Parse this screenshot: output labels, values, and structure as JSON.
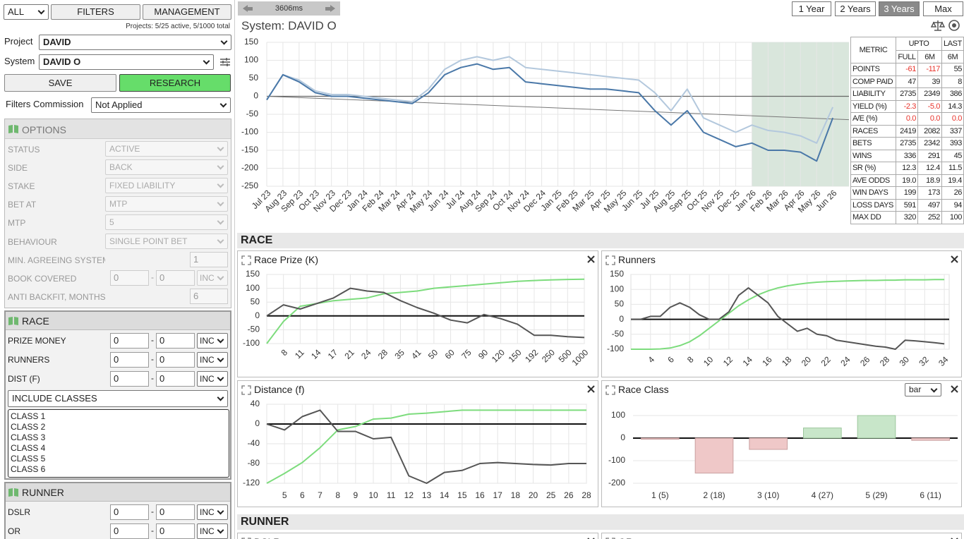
{
  "sidebar": {
    "scope": "ALL",
    "tabs": [
      "FILTERS",
      "MANAGEMENT"
    ],
    "projects_info": "Projects: 5/25 active, 5/1000 total",
    "project": {
      "label": "Project",
      "value": "DAVID"
    },
    "system": {
      "label": "System",
      "value": "DAVID O"
    },
    "buttons": [
      "SAVE",
      "RESEARCH"
    ],
    "commission": {
      "label": "Filters Commission",
      "value": "Not Applied"
    },
    "range_separator": "-",
    "options": {
      "title": "OPTIONS",
      "rows": [
        {
          "label": "STATUS",
          "select": "ACTIVE"
        },
        {
          "label": "SIDE",
          "select": "BACK"
        },
        {
          "label": "STAKE",
          "select": "FIXED LIABILITY"
        },
        {
          "label": "BET AT",
          "select": "MTP"
        },
        {
          "label": "MTP",
          "select": "5"
        },
        {
          "label": "BEHAVIOUR",
          "select": "SINGLE POINT BET"
        },
        {
          "label": "MIN. AGREEING SYSTEMS",
          "input": "1"
        },
        {
          "label": "BOOK COVERED",
          "from": "0",
          "to": "0",
          "mode": "INC"
        },
        {
          "label": "ANTI BACKFIT, MONTHS",
          "input": "6"
        }
      ]
    },
    "race": {
      "title": "RACE",
      "rows": [
        {
          "label": "PRIZE MONEY",
          "from": "0",
          "to": "0",
          "mode": "INC"
        },
        {
          "label": "RUNNERS",
          "from": "0",
          "to": "0",
          "mode": "INC"
        },
        {
          "label": "DIST (F)",
          "from": "0",
          "to": "0",
          "mode": "INC"
        }
      ],
      "classes_select": "INCLUDE CLASSES",
      "classes": [
        "CLASS 1",
        "CLASS 2",
        "CLASS 3",
        "CLASS 4",
        "CLASS 5",
        "CLASS 6"
      ]
    },
    "runner": {
      "title": "RUNNER",
      "rows": [
        {
          "label": "DSLR",
          "from": "0",
          "to": "0",
          "mode": "INC"
        },
        {
          "label": "OR",
          "from": "0",
          "to": "0",
          "mode": "INC"
        }
      ]
    }
  },
  "toolbar": {
    "timer": "3606ms",
    "periods": [
      "1 Year",
      "2 Years",
      "3 Years",
      "Max"
    ],
    "active_period": "3 Years"
  },
  "system_title": "System: DAVID O",
  "metrics": {
    "header": "METRIC",
    "groups": [
      "UPTO",
      "LAST"
    ],
    "columns": [
      "FULL",
      "6M",
      "6M"
    ],
    "alert_color": "#e8332b",
    "rows": [
      {
        "metric": "POINTS",
        "values": [
          "-61",
          "-117",
          "55"
        ],
        "red": [
          true,
          true,
          false
        ]
      },
      {
        "metric": "COMP PAID",
        "values": [
          "47",
          "39",
          "8"
        ],
        "red": [
          false,
          false,
          false
        ]
      },
      {
        "metric": "LIABILITY",
        "values": [
          "2735",
          "2349",
          "386"
        ],
        "red": [
          false,
          false,
          false
        ]
      },
      {
        "metric": "YIELD (%)",
        "values": [
          "-2.3",
          "-5.0",
          "14.3"
        ],
        "red": [
          true,
          true,
          false
        ]
      },
      {
        "metric": "A/E (%)",
        "values": [
          "0.0",
          "0.0",
          "0.0"
        ],
        "red": [
          true,
          true,
          true
        ]
      },
      {
        "metric": "RACES",
        "values": [
          "2419",
          "2082",
          "337"
        ],
        "red": [
          false,
          false,
          false
        ]
      },
      {
        "metric": "BETS",
        "values": [
          "2735",
          "2342",
          "393"
        ],
        "red": [
          false,
          false,
          false
        ]
      },
      {
        "metric": "WINS",
        "values": [
          "336",
          "291",
          "45"
        ],
        "red": [
          false,
          false,
          false
        ]
      },
      {
        "metric": "SR (%)",
        "values": [
          "12.3",
          "12.4",
          "11.5"
        ],
        "red": [
          false,
          false,
          false
        ]
      },
      {
        "metric": "AVE ODDS",
        "values": [
          "19.0",
          "18.9",
          "19.4"
        ],
        "red": [
          false,
          false,
          false
        ]
      },
      {
        "metric": "WIN DAYS",
        "values": [
          "199",
          "173",
          "26"
        ],
        "red": [
          false,
          false,
          false
        ]
      },
      {
        "metric": "LOSS DAYS",
        "values": [
          "591",
          "497",
          "94"
        ],
        "red": [
          false,
          false,
          false
        ]
      },
      {
        "metric": "MAX DD",
        "values": [
          "320",
          "252",
          "100"
        ],
        "red": [
          false,
          false,
          false
        ]
      }
    ]
  },
  "sections": [
    "RACE",
    "RUNNER"
  ],
  "runner_panels": [
    "DSLR",
    "OR"
  ],
  "chart_data": [
    {
      "type": "line",
      "categories": [
        "Jul 23",
        "Aug 23",
        "Sep 23",
        "Oct 23",
        "Nov 23",
        "Dec 23",
        "Jan 24",
        "Feb 24",
        "Mar 24",
        "Apr 24",
        "May 24",
        "Jun 24",
        "Jul 24",
        "Aug 24",
        "Sep 24",
        "Oct 24",
        "Nov 24",
        "Dec 24",
        "Jan 25",
        "Feb 25",
        "Mar 25",
        "Apr 25",
        "May 25",
        "Jun 25",
        "Jul 25",
        "Aug 25",
        "Sep 25",
        "Oct 25",
        "Nov 25",
        "Dec 25",
        "Jan 26",
        "Feb 26",
        "Mar 26",
        "Apr 26",
        "May 26",
        "Jun 26"
      ],
      "ylim": [
        -250,
        150
      ],
      "yticks": [
        -250,
        -200,
        -150,
        -100,
        -50,
        0,
        50,
        100,
        150
      ],
      "grid": true,
      "zero_line": true,
      "series": [
        {
          "color": "#b3c8dd",
          "values": [
            -10,
            60,
            45,
            15,
            5,
            5,
            0,
            -5,
            -10,
            -15,
            20,
            75,
            100,
            110,
            100,
            110,
            80,
            75,
            70,
            65,
            60,
            55,
            50,
            45,
            10,
            -40,
            20,
            -60,
            -80,
            -100,
            -80,
            -95,
            -100,
            -110,
            -130,
            -30
          ]
        },
        {
          "color": "#4a78a8",
          "values": [
            -10,
            60,
            40,
            10,
            0,
            0,
            -5,
            -10,
            -15,
            -20,
            10,
            60,
            80,
            90,
            75,
            80,
            40,
            35,
            30,
            25,
            20,
            20,
            15,
            10,
            -40,
            -80,
            -40,
            -100,
            -120,
            -140,
            -130,
            -150,
            -150,
            -155,
            -180,
            -60
          ]
        }
      ],
      "trend": {
        "color": "#777777",
        "values": [
          0,
          -65
        ]
      },
      "shade": {
        "from": "Jan 26",
        "color": "#d9e6dc"
      }
    },
    {
      "type": "line",
      "title": "Race Prize (K)",
      "categories": [
        null,
        "8",
        "11",
        "14",
        "17",
        "21",
        "24",
        "28",
        "35",
        "41",
        "50",
        "60",
        "75",
        "90",
        "120",
        "150",
        "192",
        "250",
        "500",
        "1000"
      ],
      "ylim": [
        -100,
        150
      ],
      "yticks": [
        -100,
        -50,
        0,
        50,
        100,
        150
      ],
      "grid": true,
      "zero_line": true,
      "series": [
        {
          "color": "#7ddc7d",
          "values": [
            -100,
            -20,
            35,
            45,
            55,
            60,
            65,
            80,
            85,
            90,
            100,
            105,
            110,
            115,
            120,
            125,
            128,
            130,
            132,
            133
          ]
        },
        {
          "color": "#555555",
          "values": [
            0,
            40,
            25,
            45,
            65,
            100,
            90,
            85,
            55,
            30,
            10,
            -15,
            -25,
            5,
            -10,
            -30,
            -70,
            -70,
            -75,
            -78
          ]
        }
      ]
    },
    {
      "type": "line",
      "title": "Runners",
      "x": [
        2,
        3,
        4,
        5,
        6,
        7,
        8,
        9,
        10,
        11,
        12,
        13,
        14,
        15,
        16,
        17,
        18,
        19,
        20,
        21,
        22,
        23,
        24,
        25,
        26,
        27,
        28,
        29,
        30,
        31,
        32,
        33,
        34
      ],
      "xlim": [
        2,
        34.5
      ],
      "xticks": [
        4,
        6,
        8,
        10,
        12,
        14,
        16,
        18,
        20,
        22,
        24,
        26,
        28,
        30,
        32,
        34
      ],
      "ylim": [
        -100,
        150
      ],
      "yticks": [
        -100,
        -50,
        0,
        50,
        100,
        150
      ],
      "grid": true,
      "zero_line": true,
      "series": [
        {
          "color": "#7ddc7d",
          "values": [
            -100,
            -100,
            -100,
            -99,
            -96,
            -88,
            -75,
            -55,
            -30,
            -5,
            20,
            45,
            65,
            82,
            95,
            105,
            112,
            117,
            121,
            124,
            126,
            127,
            128,
            129,
            130,
            130,
            131,
            131,
            132,
            132,
            132,
            133,
            133
          ]
        },
        {
          "color": "#555555",
          "values": [
            0,
            0,
            10,
            10,
            40,
            55,
            40,
            15,
            0,
            0,
            25,
            80,
            105,
            80,
            55,
            10,
            -15,
            -40,
            -30,
            -50,
            -55,
            -70,
            -75,
            -80,
            -85,
            -90,
            -93,
            -100,
            -70,
            -72,
            -75,
            -78,
            -82
          ]
        }
      ]
    },
    {
      "type": "line",
      "title": "Distance (f)",
      "categories": [
        null,
        "5",
        "6",
        "7",
        "8",
        "9",
        "10",
        "11",
        "12",
        "13",
        "14",
        "15",
        "16",
        "17",
        "18",
        "20",
        "25",
        "26",
        "28"
      ],
      "ylim": [
        -120,
        40
      ],
      "yticks": [
        -120,
        -80,
        -40,
        0,
        40
      ],
      "grid": true,
      "zero_line": true,
      "series": [
        {
          "color": "#7ddc7d",
          "values": [
            -120,
            -100,
            -78,
            -48,
            -12,
            -5,
            10,
            12,
            20,
            22,
            25,
            28,
            28,
            28,
            28,
            28,
            28,
            28,
            28
          ]
        },
        {
          "color": "#555555",
          "values": [
            0,
            -12,
            15,
            28,
            -15,
            -15,
            -30,
            -27,
            -105,
            -120,
            -98,
            -94,
            -80,
            -78,
            -80,
            -82,
            -83,
            -80,
            -80
          ]
        }
      ]
    },
    {
      "type": "bar",
      "title": "Race Class",
      "mode": "bar",
      "categories": [
        "1 (5)",
        "2 (18)",
        "3 (10)",
        "4 (27)",
        "5 (29)",
        "6 (11)"
      ],
      "values": [
        -5,
        -155,
        -50,
        45,
        100,
        -10
      ],
      "positive_color": "#c8e6c9",
      "negative_color": "#efc8c8",
      "ylim": [
        -200,
        150
      ],
      "yticks": [
        -200,
        -100,
        0,
        100
      ],
      "grid": true,
      "zero_line": true
    }
  ]
}
